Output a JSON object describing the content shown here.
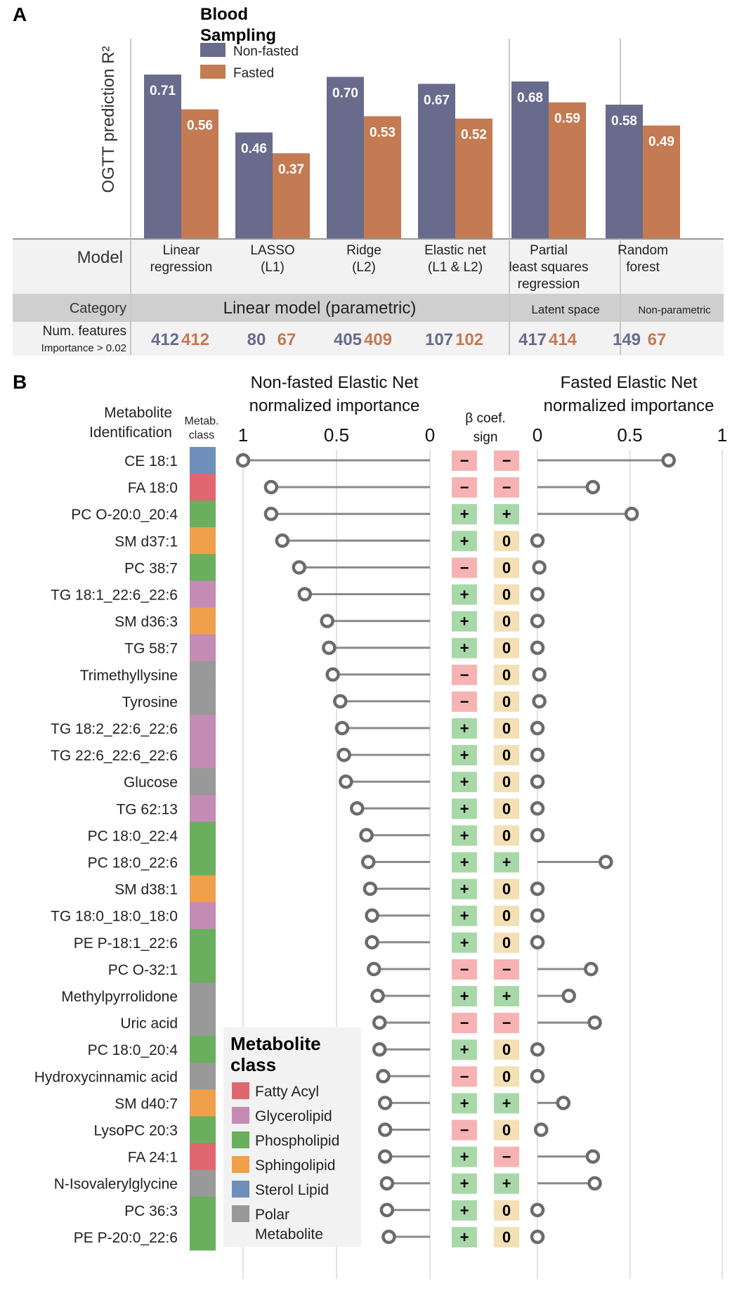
{
  "panel_a": {
    "letter": "A",
    "ylabel": "OGTT prediction R²",
    "legend": {
      "title": "Blood Sampling",
      "items": [
        {
          "label": "Non-fasted",
          "color": "#686b8c"
        },
        {
          "label": "Fasted",
          "color": "#c47a52"
        }
      ]
    },
    "row_labels": {
      "model": "Model",
      "category": "Category",
      "features": "Num. features",
      "features_sub": "Importance > 0.02"
    },
    "categories": [
      {
        "label": "Linear model (parametric)",
        "span": 4
      },
      {
        "label": "Latent space",
        "span": 1
      },
      {
        "label": "Non-parametric",
        "span": 1
      }
    ]
  },
  "chart_data": [
    {
      "type": "bar",
      "ylabel": "OGTT prediction R²",
      "ylim": [
        0,
        0.85
      ],
      "categories": [
        "Linear regression",
        "LASSO (L1)",
        "Ridge (L2)",
        "Elastic net (L1 & L2)",
        "Partial least squares regression",
        "Random forest"
      ],
      "category_lines": [
        [
          "Linear",
          "regression"
        ],
        [
          "LASSO",
          "(L1)"
        ],
        [
          "Ridge",
          "(L2)"
        ],
        [
          "Elastic net",
          "(L1 & L2)"
        ],
        [
          "Partial",
          "least squares",
          "regression"
        ],
        [
          "Random",
          "forest"
        ]
      ],
      "series": [
        {
          "name": "Non-fasted",
          "color": "#686b8c",
          "values": [
            0.71,
            0.46,
            0.7,
            0.67,
            0.68,
            0.58
          ],
          "labels": [
            "0.71",
            "0.46",
            "0.70",
            "0.67",
            "0.68",
            "0.58"
          ],
          "features": [
            412,
            80,
            405,
            107,
            417,
            149
          ]
        },
        {
          "name": "Fasted",
          "color": "#c47a52",
          "values": [
            0.56,
            0.37,
            0.53,
            0.52,
            0.59,
            0.49
          ],
          "labels": [
            "0.56",
            "0.37",
            "0.53",
            "0.52",
            "0.59",
            "0.49"
          ],
          "features": [
            412,
            67,
            409,
            102,
            414,
            67
          ]
        }
      ]
    },
    {
      "type": "lollipop",
      "title_left": [
        "Non-fasted Elastic Net",
        "normalized importance"
      ],
      "title_right": [
        "Fasted Elastic Net",
        "normalized importance"
      ],
      "xlim": [
        0,
        1
      ],
      "ticks": [
        "1",
        "0.5",
        "0",
        "0",
        "0.5",
        "1"
      ],
      "tick_values": [
        1,
        0.5,
        0,
        0,
        0.5,
        1
      ],
      "sign_header": [
        "β coef.",
        "sign"
      ],
      "id_header": [
        "Metabolite",
        "Identification"
      ],
      "class_header": [
        "Metab.",
        "class"
      ],
      "metabolites": [
        {
          "name": "CE 18:1",
          "cls": "Sterol Lipid",
          "nf": 1.0,
          "f": 0.71,
          "s1": "−",
          "s2": "−"
        },
        {
          "name": "FA 18:0",
          "cls": "Fatty Acyl",
          "nf": 0.85,
          "f": 0.3,
          "s1": "−",
          "s2": "−"
        },
        {
          "name": "PC O-20:0_20:4",
          "cls": "Phospholipid",
          "nf": 0.85,
          "f": 0.51,
          "s1": "+",
          "s2": "+"
        },
        {
          "name": "SM d37:1",
          "cls": "Sphingolipid",
          "nf": 0.79,
          "f": 0.0,
          "s1": "+",
          "s2": "0"
        },
        {
          "name": "PC 38:7",
          "cls": "Phospholipid",
          "nf": 0.7,
          "f": 0.01,
          "s1": "−",
          "s2": "0"
        },
        {
          "name": "TG 18:1_22:6_22:6",
          "cls": "Glycerolipid",
          "nf": 0.67,
          "f": 0.0,
          "s1": "+",
          "s2": "0"
        },
        {
          "name": "SM d36:3",
          "cls": "Sphingolipid",
          "nf": 0.55,
          "f": 0.0,
          "s1": "+",
          "s2": "0"
        },
        {
          "name": "TG 58:7",
          "cls": "Glycerolipid",
          "nf": 0.54,
          "f": 0.0,
          "s1": "+",
          "s2": "0"
        },
        {
          "name": "Trimethyllysine",
          "cls": "Polar Metabolite",
          "nf": 0.52,
          "f": 0.01,
          "s1": "−",
          "s2": "0"
        },
        {
          "name": "Tyrosine",
          "cls": "Polar Metabolite",
          "nf": 0.48,
          "f": 0.01,
          "s1": "−",
          "s2": "0"
        },
        {
          "name": "TG 18:2_22:6_22:6",
          "cls": "Glycerolipid",
          "nf": 0.47,
          "f": 0.0,
          "s1": "+",
          "s2": "0"
        },
        {
          "name": "TG 22:6_22:6_22:6",
          "cls": "Glycerolipid",
          "nf": 0.46,
          "f": 0.0,
          "s1": "+",
          "s2": "0"
        },
        {
          "name": "Glucose",
          "cls": "Polar Metabolite",
          "nf": 0.45,
          "f": 0.0,
          "s1": "+",
          "s2": "0"
        },
        {
          "name": "TG 62:13",
          "cls": "Glycerolipid",
          "nf": 0.39,
          "f": 0.0,
          "s1": "+",
          "s2": "0"
        },
        {
          "name": "PC 18:0_22:4",
          "cls": "Phospholipid",
          "nf": 0.34,
          "f": 0.0,
          "s1": "+",
          "s2": "0"
        },
        {
          "name": "PC 18:0_22:6",
          "cls": "Phospholipid",
          "nf": 0.33,
          "f": 0.37,
          "s1": "+",
          "s2": "+"
        },
        {
          "name": "SM d38:1",
          "cls": "Sphingolipid",
          "nf": 0.32,
          "f": 0.0,
          "s1": "+",
          "s2": "0"
        },
        {
          "name": "TG 18:0_18:0_18:0",
          "cls": "Glycerolipid",
          "nf": 0.31,
          "f": 0.0,
          "s1": "+",
          "s2": "0"
        },
        {
          "name": "PE P-18:1_22:6",
          "cls": "Phospholipid",
          "nf": 0.31,
          "f": 0.0,
          "s1": "+",
          "s2": "0"
        },
        {
          "name": "PC O-32:1",
          "cls": "Phospholipid",
          "nf": 0.3,
          "f": 0.29,
          "s1": "−",
          "s2": "−"
        },
        {
          "name": "Methylpyrrolidone",
          "cls": "Polar Metabolite",
          "nf": 0.28,
          "f": 0.17,
          "s1": "+",
          "s2": "+"
        },
        {
          "name": "Uric acid",
          "cls": "Polar Metabolite",
          "nf": 0.27,
          "f": 0.31,
          "s1": "−",
          "s2": "−"
        },
        {
          "name": "PC 18:0_20:4",
          "cls": "Phospholipid",
          "nf": 0.27,
          "f": 0.0,
          "s1": "+",
          "s2": "0"
        },
        {
          "name": "Hydroxycinnamic acid",
          "cls": "Polar Metabolite",
          "nf": 0.25,
          "f": 0.0,
          "s1": "−",
          "s2": "0"
        },
        {
          "name": "SM d40:7",
          "cls": "Sphingolipid",
          "nf": 0.24,
          "f": 0.14,
          "s1": "+",
          "s2": "+"
        },
        {
          "name": "LysoPC 20:3",
          "cls": "Phospholipid",
          "nf": 0.24,
          "f": 0.02,
          "s1": "−",
          "s2": "0"
        },
        {
          "name": "FA 24:1",
          "cls": "Fatty Acyl",
          "nf": 0.24,
          "f": 0.3,
          "s1": "+",
          "s2": "−"
        },
        {
          "name": "N-Isovalerylglycine",
          "cls": "Polar Metabolite",
          "nf": 0.23,
          "f": 0.31,
          "s1": "+",
          "s2": "+"
        },
        {
          "name": "PC 36:3",
          "cls": "Phospholipid",
          "nf": 0.23,
          "f": 0.0,
          "s1": "+",
          "s2": "0"
        },
        {
          "name": "PE P-20:0_22:6",
          "cls": "Phospholipid",
          "nf": 0.22,
          "f": 0.0,
          "s1": "+",
          "s2": "0"
        }
      ]
    }
  ],
  "panel_b": {
    "letter": "B",
    "legend": {
      "title": [
        "Metabolite",
        "class"
      ],
      "items": [
        {
          "label": "Fatty Acyl",
          "color": "#e06670"
        },
        {
          "label": "Glycerolipid",
          "color": "#c48cb4"
        },
        {
          "label": "Phospholipid",
          "color": "#6aaf5e"
        },
        {
          "label": "Sphingolipid",
          "color": "#f0a04a"
        },
        {
          "label": "Sterol Lipid",
          "color": "#6e8fba"
        },
        {
          "label": "Polar Metabolite",
          "color": "#999999",
          "lines": [
            "Polar",
            "Metabolite"
          ]
        }
      ]
    },
    "sign_colors": {
      "+": "#a8d8a8",
      "−": "#f7b3b3",
      "0": "#f3e0b5"
    }
  }
}
